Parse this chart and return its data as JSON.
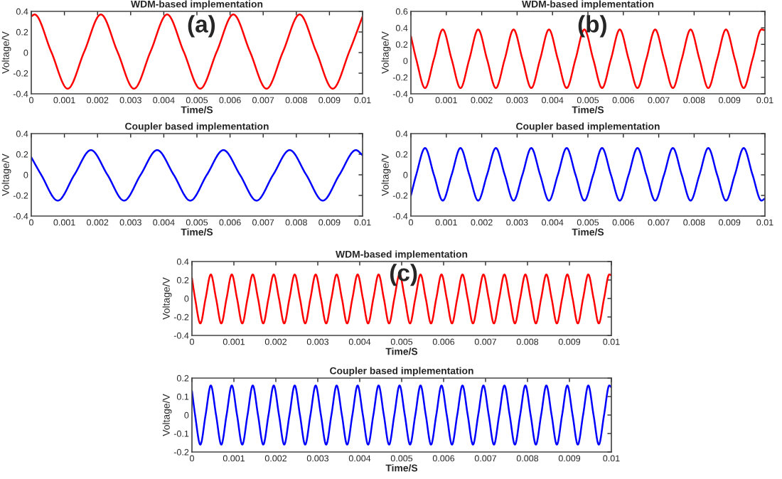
{
  "chart_data": [
    {
      "type": "line",
      "title": "WDM-based implementation",
      "xlabel": "Time/S",
      "ylabel": "Voltage/V",
      "annotations": [
        "(a)"
      ],
      "color": "#ff0000",
      "xlim": [
        0,
        0.01
      ],
      "ylim": [
        -0.4,
        0.4
      ],
      "xticks": [
        0,
        0.001,
        0.002,
        0.003,
        0.004,
        0.005,
        0.006,
        0.007,
        0.008,
        0.009,
        0.01
      ],
      "yticks": [
        -0.4,
        -0.2,
        0,
        0.2,
        0.4
      ],
      "x": [
        0,
        0.0001,
        0.0006,
        0.0011,
        0.0016,
        0.0021,
        0.0026,
        0.0031,
        0.0036,
        0.0041,
        0.0046,
        0.0051,
        0.0056,
        0.0061,
        0.0066,
        0.0071,
        0.0076,
        0.0081,
        0.0086,
        0.0091,
        0.0096,
        0.01
      ],
      "values": [
        0.35,
        0.37,
        0.01,
        -0.35,
        0.01,
        0.37,
        0.01,
        -0.35,
        0.01,
        0.37,
        0.01,
        -0.35,
        0.01,
        0.37,
        0.01,
        -0.35,
        0.01,
        0.37,
        0.01,
        -0.35,
        0.01,
        0.35
      ]
    },
    {
      "type": "line",
      "title": "Coupler based implementation",
      "xlabel": "Time/S",
      "ylabel": "Voltage/V",
      "color": "#0000ff",
      "xlim": [
        0,
        0.01
      ],
      "ylim": [
        -0.4,
        0.4
      ],
      "xticks": [
        0,
        0.001,
        0.002,
        0.003,
        0.004,
        0.005,
        0.006,
        0.007,
        0.008,
        0.009,
        0.01
      ],
      "yticks": [
        -0.4,
        -0.2,
        0,
        0.2,
        0.4
      ],
      "x": [
        0,
        0.0003,
        0.0008,
        0.0013,
        0.0018,
        0.0023,
        0.0028,
        0.0033,
        0.0038,
        0.0043,
        0.0048,
        0.0053,
        0.0058,
        0.0063,
        0.0068,
        0.0073,
        0.0078,
        0.0083,
        0.0088,
        0.0093,
        0.0098,
        0.01
      ],
      "values": [
        0.17,
        0,
        -0.25,
        0,
        0.24,
        0,
        -0.25,
        0,
        0.24,
        0,
        -0.25,
        0,
        0.24,
        0,
        -0.25,
        0,
        0.24,
        0,
        -0.25,
        0,
        0.24,
        0.19
      ]
    },
    {
      "type": "line",
      "title": "WDM-based implementation",
      "xlabel": "Time/S",
      "ylabel": "Voltage/V",
      "annotations": [
        "(b)"
      ],
      "color": "#ff0000",
      "xlim": [
        0,
        0.01
      ],
      "ylim": [
        -0.4,
        0.6
      ],
      "xticks": [
        0,
        0.001,
        0.002,
        0.003,
        0.004,
        0.005,
        0.006,
        0.007,
        0.008,
        0.009,
        0.01
      ],
      "yticks": [
        -0.4,
        -0.2,
        0,
        0.2,
        0.4,
        0.6
      ],
      "x": [
        0,
        0.00015,
        0.0004,
        0.00065,
        0.0009,
        0.00115,
        0.0014,
        0.00165,
        0.0019,
        0.00215,
        0.0024,
        0.00265,
        0.0029,
        0.00315,
        0.0034,
        0.00365,
        0.0039,
        0.00415,
        0.0044,
        0.00465,
        0.0049,
        0.00515,
        0.0054,
        0.00565,
        0.0059,
        0.00615,
        0.0064,
        0.00665,
        0.0069,
        0.00715,
        0.0074,
        0.00765,
        0.0079,
        0.00815,
        0.0084,
        0.00865,
        0.0089,
        0.00915,
        0.0094,
        0.00965,
        0.0099,
        0.01
      ],
      "values": [
        0.3,
        0.02,
        -0.33,
        0.02,
        0.38,
        0.02,
        -0.33,
        0.02,
        0.38,
        0.02,
        -0.33,
        0.02,
        0.38,
        0.02,
        -0.33,
        0.02,
        0.38,
        0.02,
        -0.33,
        0.02,
        0.38,
        0.02,
        -0.33,
        0.02,
        0.38,
        0.02,
        -0.33,
        0.02,
        0.38,
        0.02,
        -0.33,
        0.02,
        0.38,
        0.02,
        -0.33,
        0.02,
        0.38,
        0.02,
        -0.33,
        0.02,
        0.38,
        0.37
      ]
    },
    {
      "type": "line",
      "title": "Coupler based implementation",
      "xlabel": "Time/S",
      "ylabel": "Voltage/V",
      "color": "#0000ff",
      "xlim": [
        0,
        0.01
      ],
      "ylim": [
        -0.4,
        0.4
      ],
      "xticks": [
        0,
        0.001,
        0.002,
        0.003,
        0.004,
        0.005,
        0.006,
        0.007,
        0.008,
        0.009,
        0.01
      ],
      "yticks": [
        -0.4,
        -0.2,
        0,
        0.2,
        0.4
      ],
      "x": [
        0,
        0.00015,
        0.0004,
        0.00065,
        0.0009,
        0.00115,
        0.0014,
        0.00165,
        0.0019,
        0.00215,
        0.0024,
        0.00265,
        0.0029,
        0.00315,
        0.0034,
        0.00365,
        0.0039,
        0.00415,
        0.0044,
        0.00465,
        0.0049,
        0.00515,
        0.0054,
        0.00565,
        0.0059,
        0.00615,
        0.0064,
        0.00665,
        0.0069,
        0.00715,
        0.0074,
        0.00765,
        0.0079,
        0.00815,
        0.0084,
        0.00865,
        0.0089,
        0.00915,
        0.0094,
        0.00965,
        0.0099,
        0.01
      ],
      "values": [
        -0.2,
        0,
        0.26,
        0,
        -0.25,
        0,
        0.26,
        0,
        -0.25,
        0,
        0.26,
        0,
        -0.25,
        0,
        0.26,
        0,
        -0.25,
        0,
        0.26,
        0,
        -0.25,
        0,
        0.26,
        0,
        -0.25,
        0,
        0.26,
        0,
        -0.25,
        0,
        0.26,
        0,
        -0.25,
        0,
        0.26,
        0,
        -0.25,
        0,
        0.26,
        0,
        -0.25,
        -0.23
      ]
    },
    {
      "type": "line",
      "title": "WDM-based implementation",
      "xlabel": "Time/S",
      "ylabel": "Voltage/V",
      "annotations": [
        "(c)"
      ],
      "color": "#ff0000",
      "xlim": [
        0,
        0.01
      ],
      "ylim": [
        -0.4,
        0.4
      ],
      "xticks": [
        0,
        0.001,
        0.002,
        0.003,
        0.004,
        0.005,
        0.006,
        0.007,
        0.008,
        0.009,
        0.01
      ],
      "yticks": [
        -0.4,
        -0.2,
        0,
        0.2,
        0.4
      ],
      "x": [
        0,
        7.5e-05,
        0.0002,
        0.000325,
        0.00045,
        0.000575,
        0.0007,
        0.000825,
        0.00095,
        0.001075,
        0.0012,
        0.001325,
        0.00145,
        0.001575,
        0.0017,
        0.001825,
        0.00195,
        0.002075,
        0.0022,
        0.002325,
        0.00245,
        0.002575,
        0.0027,
        0.002825,
        0.00295,
        0.003075,
        0.0032,
        0.003325,
        0.00345,
        0.003575,
        0.0037,
        0.003825,
        0.00395,
        0.004075,
        0.0042,
        0.004325,
        0.00445,
        0.004575,
        0.0047,
        0.004825,
        0.00495,
        0.005075,
        0.0052,
        0.005325,
        0.00545,
        0.005575,
        0.0057,
        0.005825,
        0.00595,
        0.006075,
        0.0062,
        0.006325,
        0.00645,
        0.006575,
        0.0067,
        0.006825,
        0.00695,
        0.007075,
        0.0072,
        0.007325,
        0.00745,
        0.007575,
        0.0077,
        0.007825,
        0.00795,
        0.008075,
        0.0082,
        0.008325,
        0.00845,
        0.008575,
        0.0087,
        0.008825,
        0.00895,
        0.009075,
        0.0092,
        0.009325,
        0.00945,
        0.009575,
        0.0097,
        0.009825,
        0.00995,
        0.01
      ],
      "values": [
        0.22,
        0,
        -0.27,
        0,
        0.26,
        0,
        -0.27,
        0,
        0.26,
        0,
        -0.27,
        0,
        0.26,
        0,
        -0.27,
        0,
        0.26,
        0,
        -0.27,
        0,
        0.26,
        0,
        -0.27,
        0,
        0.26,
        0,
        -0.27,
        0,
        0.26,
        0,
        -0.27,
        0,
        0.26,
        0,
        -0.27,
        0,
        0.26,
        0,
        -0.27,
        0,
        0.26,
        0,
        -0.27,
        0,
        0.26,
        0,
        -0.27,
        0,
        0.26,
        0,
        -0.27,
        0,
        0.26,
        0,
        -0.27,
        0,
        0.26,
        0,
        -0.27,
        0,
        0.26,
        0,
        -0.27,
        0,
        0.26,
        0,
        -0.27,
        0,
        0.26,
        0,
        -0.27,
        0,
        0.26,
        0,
        -0.27,
        0,
        0.26,
        0,
        -0.27,
        0,
        0.26,
        0.25
      ]
    },
    {
      "type": "line",
      "title": "Coupler based implementation",
      "xlabel": "Time/S",
      "ylabel": "Voltage/V",
      "color": "#0000ff",
      "xlim": [
        0,
        0.01
      ],
      "ylim": [
        -0.2,
        0.2
      ],
      "xticks": [
        0,
        0.001,
        0.002,
        0.003,
        0.004,
        0.005,
        0.006,
        0.007,
        0.008,
        0.009,
        0.01
      ],
      "yticks": [
        -0.2,
        -0.1,
        0,
        0.1,
        0.2
      ],
      "x": [
        0,
        7.5e-05,
        0.0002,
        0.000325,
        0.00045,
        0.000575,
        0.0007,
        0.000825,
        0.00095,
        0.001075,
        0.0012,
        0.001325,
        0.00145,
        0.001575,
        0.0017,
        0.001825,
        0.00195,
        0.002075,
        0.0022,
        0.002325,
        0.00245,
        0.002575,
        0.0027,
        0.002825,
        0.00295,
        0.003075,
        0.0032,
        0.003325,
        0.00345,
        0.003575,
        0.0037,
        0.003825,
        0.00395,
        0.004075,
        0.0042,
        0.004325,
        0.00445,
        0.004575,
        0.0047,
        0.004825,
        0.00495,
        0.005075,
        0.0052,
        0.005325,
        0.00545,
        0.005575,
        0.0057,
        0.005825,
        0.00595,
        0.006075,
        0.0062,
        0.006325,
        0.00645,
        0.006575,
        0.0067,
        0.006825,
        0.00695,
        0.007075,
        0.0072,
        0.007325,
        0.00745,
        0.007575,
        0.0077,
        0.007825,
        0.00795,
        0.008075,
        0.0082,
        0.008325,
        0.00845,
        0.008575,
        0.0087,
        0.008825,
        0.00895,
        0.009075,
        0.0092,
        0.009325,
        0.00945,
        0.009575,
        0.0097,
        0.009825,
        0.00995,
        0.01
      ],
      "values": [
        0.13,
        0,
        -0.16,
        0,
        0.16,
        0,
        -0.16,
        0,
        0.16,
        0,
        -0.16,
        0,
        0.16,
        0,
        -0.16,
        0,
        0.16,
        0,
        -0.16,
        0,
        0.16,
        0,
        -0.16,
        0,
        0.16,
        0,
        -0.16,
        0,
        0.16,
        0,
        -0.16,
        0,
        0.16,
        0,
        -0.16,
        0,
        0.16,
        0,
        -0.16,
        0,
        0.16,
        0,
        -0.16,
        0,
        0.16,
        0,
        -0.16,
        0,
        0.16,
        0,
        -0.16,
        0,
        0.16,
        0,
        -0.16,
        0,
        0.16,
        0,
        -0.16,
        0,
        0.16,
        0,
        -0.16,
        0,
        0.16,
        0,
        -0.16,
        0,
        0.16,
        0,
        -0.16,
        0,
        0.16,
        0,
        -0.16,
        0,
        0.16,
        0,
        -0.16,
        0,
        0.16,
        0.15
      ]
    }
  ]
}
